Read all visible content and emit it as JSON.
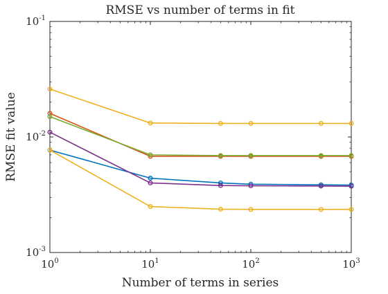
{
  "chart_data": {
    "type": "line",
    "title": "RMSE vs number of terms in fit",
    "xlabel": "Number of terms in series",
    "ylabel": "RMSE fit value",
    "xscale": "log",
    "yscale": "log",
    "xlim": [
      1,
      1000
    ],
    "ylim": [
      0.001,
      0.1
    ],
    "grid": false,
    "legend": "none",
    "x_ticks": [
      {
        "base": "10",
        "exp": "0",
        "value": 1
      },
      {
        "base": "10",
        "exp": "1",
        "value": 10
      },
      {
        "base": "10",
        "exp": "2",
        "value": 100
      },
      {
        "base": "10",
        "exp": "3",
        "value": 1000
      }
    ],
    "y_ticks": [
      {
        "base": "10",
        "exp": "-3",
        "value": 0.001
      },
      {
        "base": "10",
        "exp": "-2",
        "value": 0.01
      },
      {
        "base": "10",
        "exp": "-1",
        "value": 0.1
      }
    ],
    "x": [
      1,
      10,
      50,
      100,
      500,
      1000
    ],
    "series": [
      {
        "color": "#0072BD",
        "values": [
          0.0077,
          0.0044,
          0.004,
          0.0039,
          0.00385,
          0.00383
        ]
      },
      {
        "color": "#D95319",
        "values": [
          0.016,
          0.0068,
          0.0068,
          0.0068,
          0.0068,
          0.0068
        ]
      },
      {
        "color": "#EDB120",
        "values": [
          0.026,
          0.0132,
          0.0131,
          0.0131,
          0.0131,
          0.0131
        ]
      },
      {
        "color": "#7E2F8E",
        "values": [
          0.011,
          0.004,
          0.0038,
          0.00378,
          0.00376,
          0.00375
        ]
      },
      {
        "color": "#77AC30",
        "values": [
          0.015,
          0.007,
          0.0069,
          0.0069,
          0.0069,
          0.0069
        ]
      },
      {
        "color": "#EDB120",
        "values": [
          0.0077,
          0.0025,
          0.00237,
          0.00236,
          0.00236,
          0.00236
        ]
      }
    ]
  }
}
